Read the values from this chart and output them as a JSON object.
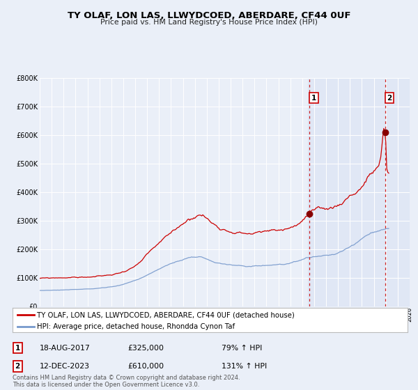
{
  "title": "TY OLAF, LON LAS, LLWYDCOED, ABERDARE, CF44 0UF",
  "subtitle": "Price paid vs. HM Land Registry's House Price Index (HPI)",
  "bg_color": "#eaeff8",
  "plot_bg_color": "#eaeff8",
  "hatch_bg_color": "#dce5f5",
  "red_line_color": "#cc0000",
  "blue_line_color": "#7799cc",
  "grid_color": "#ffffff",
  "xmin": 1995,
  "xmax": 2026,
  "ymin": 0,
  "ymax": 800000,
  "yticks": [
    0,
    100000,
    200000,
    300000,
    400000,
    500000,
    600000,
    700000,
    800000
  ],
  "ytick_labels": [
    "£0",
    "£100K",
    "£200K",
    "£300K",
    "£400K",
    "£500K",
    "£600K",
    "£700K",
    "£800K"
  ],
  "marker1_x": 2017.62,
  "marker1_y": 325000,
  "marker2_x": 2023.95,
  "marker2_y": 610000,
  "vline1_x": 2017.62,
  "vline2_x": 2023.95,
  "legend_label_red": "TY OLAF, LON LAS, LLWYDCOED, ABERDARE, CF44 0UF (detached house)",
  "legend_label_blue": "HPI: Average price, detached house, Rhondda Cynon Taf",
  "annotation1_date": "18-AUG-2017",
  "annotation1_price": "£325,000",
  "annotation1_hpi": "79% ↑ HPI",
  "annotation2_date": "12-DEC-2023",
  "annotation2_price": "£610,000",
  "annotation2_hpi": "131% ↑ HPI",
  "footer": "Contains HM Land Registry data © Crown copyright and database right 2024.\nThis data is licensed under the Open Government Licence v3.0."
}
